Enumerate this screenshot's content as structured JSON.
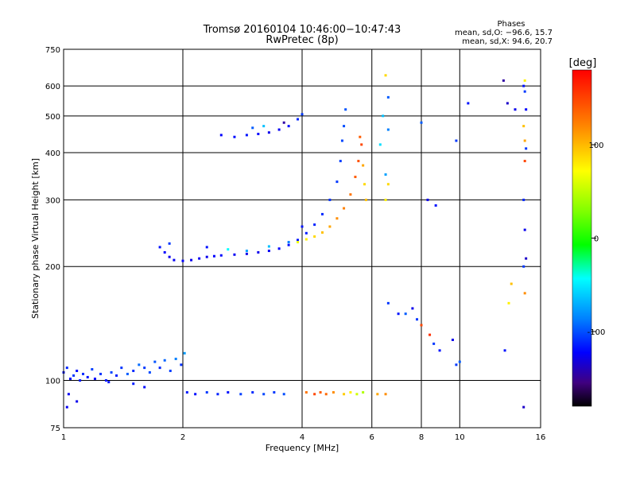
{
  "chart_data": {
    "type": "scatter",
    "title": "Tromsø 20160104 10:46:00−10:47:43",
    "subtitle": "RwPretec (8p)",
    "xlabel": "Frequency [MHz]",
    "ylabel": "Stationary phase Virtual Height [km]",
    "x_scale": "log",
    "y_scale": "log",
    "xlim": [
      1,
      16
    ],
    "ylim": [
      75,
      750
    ],
    "x_ticks": [
      1,
      2,
      4,
      6,
      8,
      10,
      16
    ],
    "x_ticklabels": [
      "1",
      "2",
      "4",
      "6",
      "8",
      "10",
      "16"
    ],
    "y_ticks": [
      75,
      100,
      200,
      300,
      400,
      500,
      600,
      750
    ],
    "y_ticklabels": [
      "75",
      "100",
      "200",
      "300",
      "400",
      "500",
      "600",
      "750"
    ],
    "grid": true,
    "phases": {
      "heading": "Phases",
      "line_o": "mean, sd,O: −96.6, 15.7",
      "line_x": "mean, sd,X:  94.6, 20.7"
    },
    "colorbar": {
      "label": "[deg]",
      "range": [
        -180,
        180
      ],
      "ticks": [
        100,
        0,
        -100
      ],
      "ticklabels": [
        "100",
        "0",
        "-100"
      ]
    },
    "series": [
      {
        "points": [
          [
            1.0,
            105,
            -110
          ],
          [
            1.02,
            108,
            -105
          ],
          [
            1.04,
            101,
            -115
          ],
          [
            1.06,
            103,
            -100
          ],
          [
            1.08,
            106,
            -112
          ],
          [
            1.1,
            100,
            -108
          ],
          [
            1.12,
            104,
            -104
          ],
          [
            1.15,
            102,
            -110
          ],
          [
            1.18,
            107,
            -98
          ],
          [
            1.2,
            101,
            -113
          ],
          [
            1.24,
            104,
            -102
          ],
          [
            1.28,
            100,
            -109
          ],
          [
            1.32,
            105,
            -96
          ],
          [
            1.36,
            103,
            -107
          ],
          [
            1.4,
            108,
            -101
          ],
          [
            1.45,
            104,
            -90
          ],
          [
            1.5,
            106,
            -104
          ],
          [
            1.55,
            110,
            -86
          ],
          [
            1.6,
            108,
            -100
          ],
          [
            1.65,
            105,
            -95
          ],
          [
            1.7,
            112,
            -92
          ],
          [
            1.75,
            108,
            -105
          ],
          [
            1.8,
            113,
            -88
          ],
          [
            1.86,
            106,
            -98
          ],
          [
            1.92,
            114,
            -80
          ],
          [
            1.98,
            110,
            -102
          ],
          [
            2.02,
            118,
            -72
          ],
          [
            1.03,
            92,
            -118
          ],
          [
            1.08,
            88,
            -120
          ],
          [
            1.02,
            85,
            -118
          ],
          [
            1.3,
            99,
            -110
          ],
          [
            1.5,
            98,
            -108
          ],
          [
            1.6,
            96,
            -112
          ]
        ]
      },
      {
        "points": [
          [
            2.05,
            93,
            -108
          ],
          [
            2.15,
            92,
            -112
          ],
          [
            2.3,
            93,
            -100
          ],
          [
            2.45,
            92,
            -106
          ],
          [
            2.6,
            93,
            -110
          ],
          [
            2.8,
            92,
            -98
          ],
          [
            3.0,
            93,
            -104
          ],
          [
            3.2,
            92,
            -96
          ],
          [
            3.4,
            93,
            -100
          ],
          [
            3.6,
            92,
            -94
          ],
          [
            4.1,
            93,
            130
          ],
          [
            4.3,
            92,
            150
          ],
          [
            4.45,
            93,
            140
          ],
          [
            4.6,
            92,
            135
          ],
          [
            4.8,
            93,
            120
          ],
          [
            5.1,
            92,
            95
          ],
          [
            5.3,
            93,
            80
          ],
          [
            5.5,
            92,
            60
          ],
          [
            5.7,
            93,
            50
          ],
          [
            6.2,
            92,
            110
          ],
          [
            6.5,
            92,
            120
          ]
        ]
      },
      {
        "points": [
          [
            1.75,
            225,
            -110
          ],
          [
            1.8,
            218,
            -115
          ],
          [
            1.85,
            212,
            -120
          ],
          [
            1.9,
            208,
            -118
          ],
          [
            2.0,
            207,
            -115
          ],
          [
            2.1,
            208,
            -120
          ],
          [
            2.2,
            210,
            -118
          ],
          [
            2.3,
            212,
            -120
          ],
          [
            2.4,
            213,
            -115
          ],
          [
            2.5,
            214,
            -112
          ],
          [
            2.7,
            215,
            -118
          ],
          [
            2.9,
            216,
            -122
          ],
          [
            3.1,
            218,
            -120
          ],
          [
            3.3,
            220,
            -118
          ],
          [
            3.5,
            223,
            -115
          ],
          [
            3.7,
            228,
            -112
          ],
          [
            3.9,
            235,
            -110
          ],
          [
            4.1,
            245,
            -108
          ],
          [
            4.3,
            258,
            -106
          ],
          [
            4.5,
            275,
            -104
          ],
          [
            4.7,
            300,
            -102
          ],
          [
            4.9,
            335,
            -100
          ],
          [
            5.0,
            380,
            -98
          ],
          [
            5.05,
            430,
            -96
          ],
          [
            5.1,
            470,
            -94
          ],
          [
            5.15,
            520,
            -92
          ],
          [
            1.85,
            230,
            -100
          ],
          [
            2.3,
            225,
            -110
          ],
          [
            2.6,
            222,
            -40
          ],
          [
            2.9,
            220,
            -70
          ],
          [
            3.3,
            226,
            -60
          ],
          [
            3.7,
            232,
            -80
          ],
          [
            4.0,
            255,
            -110
          ]
        ]
      },
      {
        "points": [
          [
            2.5,
            445,
            -115
          ],
          [
            2.7,
            440,
            -112
          ],
          [
            2.9,
            445,
            -110
          ],
          [
            3.1,
            448,
            -115
          ],
          [
            3.3,
            452,
            -120
          ],
          [
            3.5,
            460,
            -118
          ],
          [
            3.7,
            470,
            -112
          ],
          [
            3.9,
            490,
            -105
          ],
          [
            4.0,
            505,
            -100
          ],
          [
            3.0,
            465,
            -90
          ],
          [
            3.2,
            470,
            -60
          ],
          [
            3.6,
            480,
            -140
          ]
        ]
      },
      {
        "points": [
          [
            3.9,
            232,
            70
          ],
          [
            4.1,
            236,
            80
          ],
          [
            4.3,
            240,
            90
          ],
          [
            4.5,
            246,
            100
          ],
          [
            4.7,
            255,
            110
          ],
          [
            4.9,
            268,
            120
          ],
          [
            5.1,
            285,
            125
          ],
          [
            5.3,
            310,
            130
          ],
          [
            5.45,
            345,
            140
          ],
          [
            5.55,
            380,
            145
          ],
          [
            5.65,
            420,
            150
          ],
          [
            5.6,
            440,
            140
          ],
          [
            5.75,
            330,
            90
          ],
          [
            5.8,
            300,
            100
          ],
          [
            5.7,
            370,
            110
          ],
          [
            6.5,
            300,
            80
          ],
          [
            6.6,
            330,
            90
          ]
        ]
      },
      {
        "points": [
          [
            6.6,
            160,
            -100
          ],
          [
            7.0,
            150,
            -110
          ],
          [
            7.3,
            150,
            -90
          ],
          [
            7.6,
            155,
            -120
          ],
          [
            7.8,
            145,
            -100
          ],
          [
            8.0,
            140,
            150
          ],
          [
            8.4,
            132,
            160
          ],
          [
            8.6,
            125,
            -100
          ],
          [
            8.9,
            120,
            -110
          ],
          [
            9.6,
            128,
            -120
          ],
          [
            9.8,
            110,
            -100
          ],
          [
            10.0,
            112,
            -90
          ],
          [
            8.3,
            300,
            -120
          ],
          [
            8.7,
            290,
            -110
          ],
          [
            9.8,
            430,
            -100
          ],
          [
            8.0,
            480,
            -90
          ],
          [
            10.5,
            540,
            -110
          ],
          [
            13.2,
            540,
            -130
          ],
          [
            13.8,
            520,
            -120
          ],
          [
            14.5,
            600,
            -110
          ],
          [
            14.6,
            580,
            -100
          ],
          [
            14.7,
            520,
            -115
          ],
          [
            14.5,
            470,
            100
          ],
          [
            14.6,
            430,
            110
          ],
          [
            14.7,
            410,
            -100
          ],
          [
            14.6,
            380,
            150
          ],
          [
            14.5,
            300,
            -105
          ],
          [
            14.6,
            250,
            -120
          ],
          [
            14.7,
            210,
            -130
          ],
          [
            14.5,
            200,
            -100
          ],
          [
            13.5,
            180,
            100
          ],
          [
            13.3,
            160,
            80
          ],
          [
            13.0,
            120,
            -110
          ],
          [
            14.6,
            170,
            120
          ],
          [
            14.5,
            85,
            -130
          ],
          [
            14.6,
            620,
            80
          ],
          [
            6.4,
            500,
            -60
          ],
          [
            6.6,
            460,
            -80
          ],
          [
            6.3,
            420,
            -50
          ],
          [
            6.5,
            350,
            -70
          ],
          [
            6.6,
            560,
            -90
          ],
          [
            6.5,
            640,
            90
          ],
          [
            12.9,
            620,
            -140
          ]
        ]
      }
    ]
  }
}
